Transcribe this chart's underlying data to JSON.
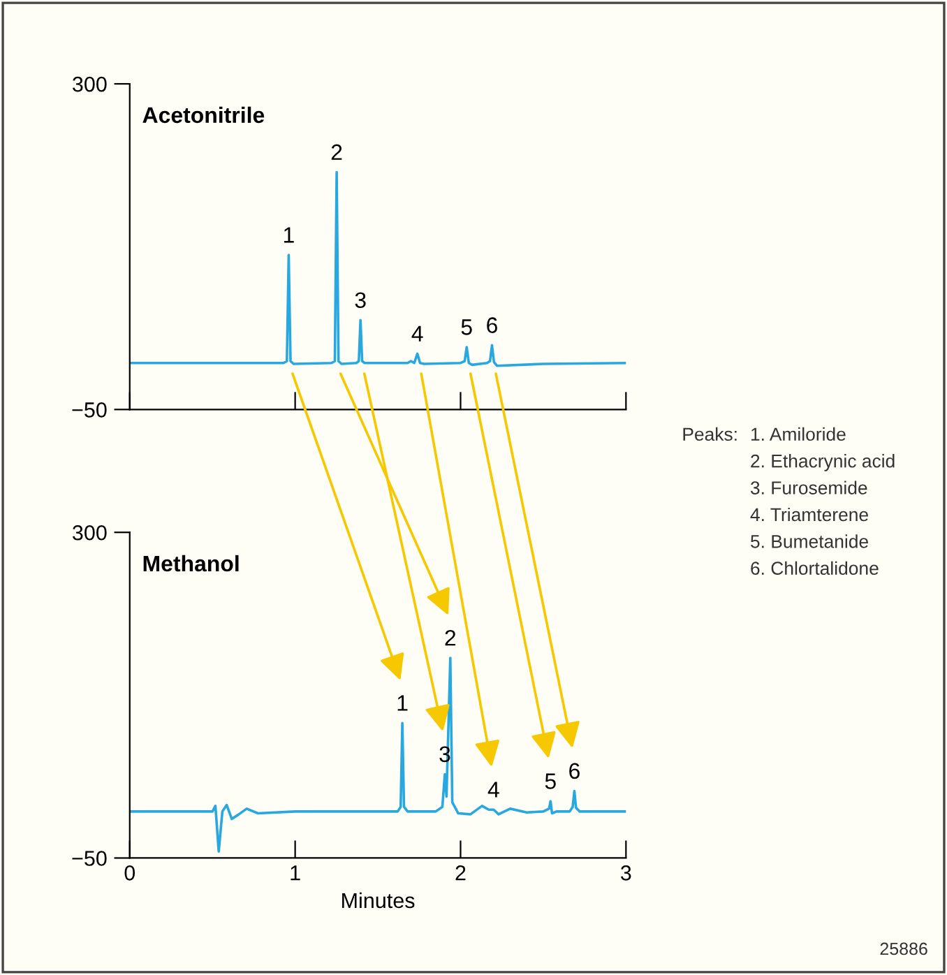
{
  "chart_data": [
    {
      "type": "line",
      "title": "Acetonitrile",
      "xlim": [
        0,
        3
      ],
      "ylim": [
        -50,
        300
      ],
      "yticks": [
        -50,
        300
      ],
      "xticks": [
        {
          "value": 0,
          "label": null
        },
        {
          "value": 1,
          "label": null
        },
        {
          "value": 2,
          "label": null
        },
        {
          "value": 3,
          "label": null
        }
      ],
      "tick_labels": "y",
      "grid": false,
      "legend": false,
      "series": [
        {
          "color": "#29a8e0",
          "x": [
            0,
            0.5,
            0.93,
            0.95,
            0.961,
            0.972,
            0.99,
            1.22,
            1.24,
            1.251,
            1.262,
            1.28,
            1.37,
            1.385,
            1.395,
            1.405,
            1.42,
            1.68,
            1.7,
            1.72,
            1.739,
            1.755,
            1.78,
            2.0,
            2.025,
            2.037,
            2.05,
            2.07,
            2.16,
            2.178,
            2.19,
            2.202,
            2.22,
            2.5,
            3.0
          ],
          "values": [
            0,
            0,
            0,
            2,
            116,
            2,
            -1,
            0,
            2,
            205,
            2,
            -1,
            0,
            2,
            46,
            2,
            0,
            0,
            2,
            0,
            10,
            0,
            -1,
            0,
            2,
            17,
            0,
            -2,
            0,
            2,
            19,
            1,
            -3,
            -1,
            0
          ]
        }
      ],
      "annotations": [
        {
          "text": "1",
          "x": 0.961,
          "y": 116
        },
        {
          "text": "2",
          "x": 1.251,
          "y": 205
        },
        {
          "text": "3",
          "x": 1.395,
          "y": 46
        },
        {
          "text": "4",
          "x": 1.739,
          "y": 10
        },
        {
          "text": "5",
          "x": 2.037,
          "y": 17
        },
        {
          "text": "6",
          "x": 2.19,
          "y": 19
        }
      ]
    },
    {
      "type": "line",
      "title": "Methanol",
      "xlabel": "Minutes",
      "xlim": [
        0,
        3
      ],
      "ylim": [
        -50,
        300
      ],
      "yticks": [
        -50,
        300
      ],
      "xticks": [
        0,
        1,
        2,
        3
      ],
      "grid": false,
      "legend": false,
      "series": [
        {
          "color": "#29a8e0",
          "x": [
            0,
            0.5,
            0.518,
            0.538,
            0.56,
            0.586,
            0.617,
            0.66,
            0.707,
            0.775,
            1.0,
            1.5,
            1.62,
            1.638,
            1.648,
            1.658,
            1.68,
            1.85,
            1.89,
            1.905,
            1.915,
            1.938,
            1.95,
            1.986,
            2.06,
            2.13,
            2.17,
            2.2,
            2.23,
            2.3,
            2.4,
            2.5,
            2.535,
            2.544,
            2.553,
            2.58,
            2.66,
            2.678,
            2.688,
            2.698,
            2.72,
            3.0
          ],
          "values": [
            0,
            0,
            6,
            -43,
            0,
            7,
            -8,
            -3,
            3,
            -2,
            0,
            0,
            0,
            5,
            95,
            5,
            0,
            0,
            5,
            40,
            16,
            165,
            10,
            -2,
            -3,
            6,
            2,
            2,
            -3,
            3,
            -1,
            0,
            3,
            11,
            -2,
            0,
            0,
            5,
            22,
            4,
            0,
            0
          ]
        }
      ],
      "annotations": [
        {
          "text": "1",
          "x": 1.648,
          "y": 95
        },
        {
          "text": "2",
          "x": 1.938,
          "y": 165
        },
        {
          "text": "3",
          "x": 1.905,
          "y": 40
        },
        {
          "text": "4",
          "x": 2.2,
          "y": 2
        },
        {
          "text": "5",
          "x": 2.544,
          "y": 11
        },
        {
          "text": "6",
          "x": 2.688,
          "y": 22
        },
        "Peaks:",
        "1. Amiloride",
        "2. Ethacrynic acid",
        "3. Furosemide",
        "4. Triamterene",
        "5. Bumetanide",
        "6. Chlortalidone",
        "25886"
      ]
    }
  ]
}
